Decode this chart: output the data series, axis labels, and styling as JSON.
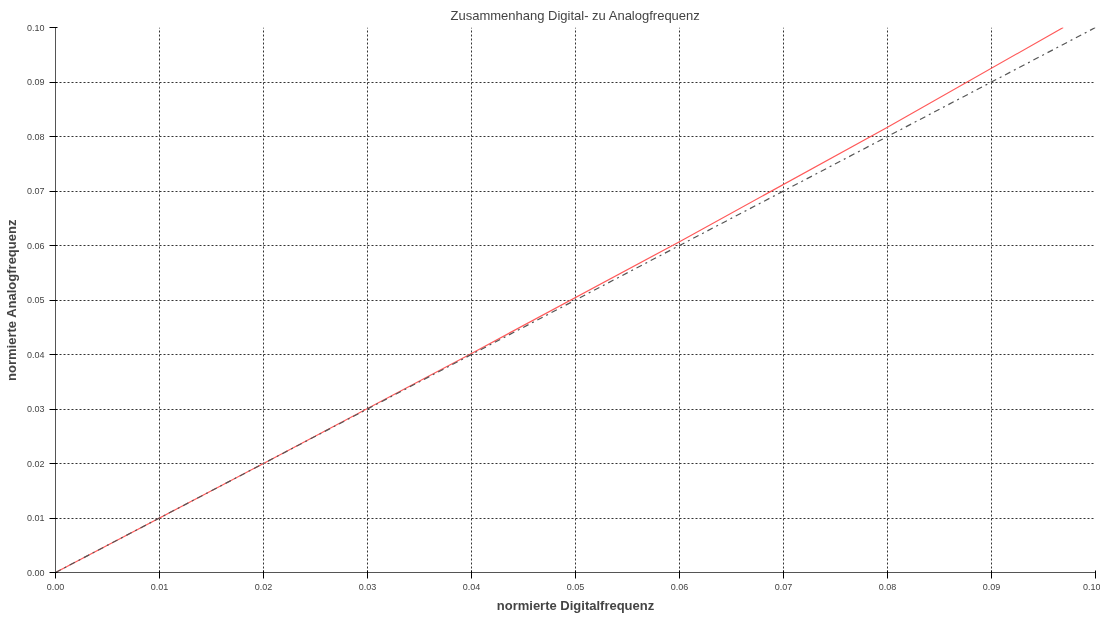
{
  "chart_data": {
    "type": "line",
    "title": "Zusammenhang Digital- zu Analogfrequenz",
    "xlabel": "normierte Digitalfrequenz",
    "ylabel": "normierte Analogfrequenz",
    "series": [
      {
        "color": "#ff5a5a",
        "line_style": "solid",
        "x": [
          0,
          0.02,
          0.04,
          0.06,
          0.08,
          0.0969
        ],
        "values": [
          0,
          0.02,
          0.0402,
          0.0607,
          0.0817,
          0.1
        ]
      },
      {
        "color": "#555555",
        "line_style": "dashdot",
        "x": [
          0,
          0.1
        ],
        "values": [
          0,
          0.1
        ]
      }
    ],
    "xlim": [
      0,
      0.1
    ],
    "ylim": [
      0,
      0.1
    ],
    "xticks": [
      {
        "value": 0,
        "label": "0.00"
      },
      {
        "value": 0.01,
        "label": "0.01"
      },
      {
        "value": 0.02,
        "label": "0.02"
      },
      {
        "value": 0.03,
        "label": "0.03"
      },
      {
        "value": 0.04,
        "label": "0.04"
      },
      {
        "value": 0.05,
        "label": "0.05"
      },
      {
        "value": 0.06,
        "label": "0.06"
      },
      {
        "value": 0.07,
        "label": "0.07"
      },
      {
        "value": 0.08,
        "label": "0.08"
      },
      {
        "value": 0.09,
        "label": "0.09"
      },
      {
        "value": 0.1,
        "label": "0.10"
      }
    ],
    "yticks": [
      {
        "value": 0,
        "label": "0.00"
      },
      {
        "value": 0.01,
        "label": "0.01"
      },
      {
        "value": 0.02,
        "label": "0.02"
      },
      {
        "value": 0.03,
        "label": "0.03"
      },
      {
        "value": 0.04,
        "label": "0.04"
      },
      {
        "value": 0.05,
        "label": "0.05"
      },
      {
        "value": 0.06,
        "label": "0.06"
      },
      {
        "value": 0.07,
        "label": "0.07"
      },
      {
        "value": 0.08,
        "label": "0.08"
      },
      {
        "value": 0.09,
        "label": "0.09"
      },
      {
        "value": 0.1,
        "label": "0.10"
      }
    ],
    "grid": true,
    "marker": "none"
  }
}
